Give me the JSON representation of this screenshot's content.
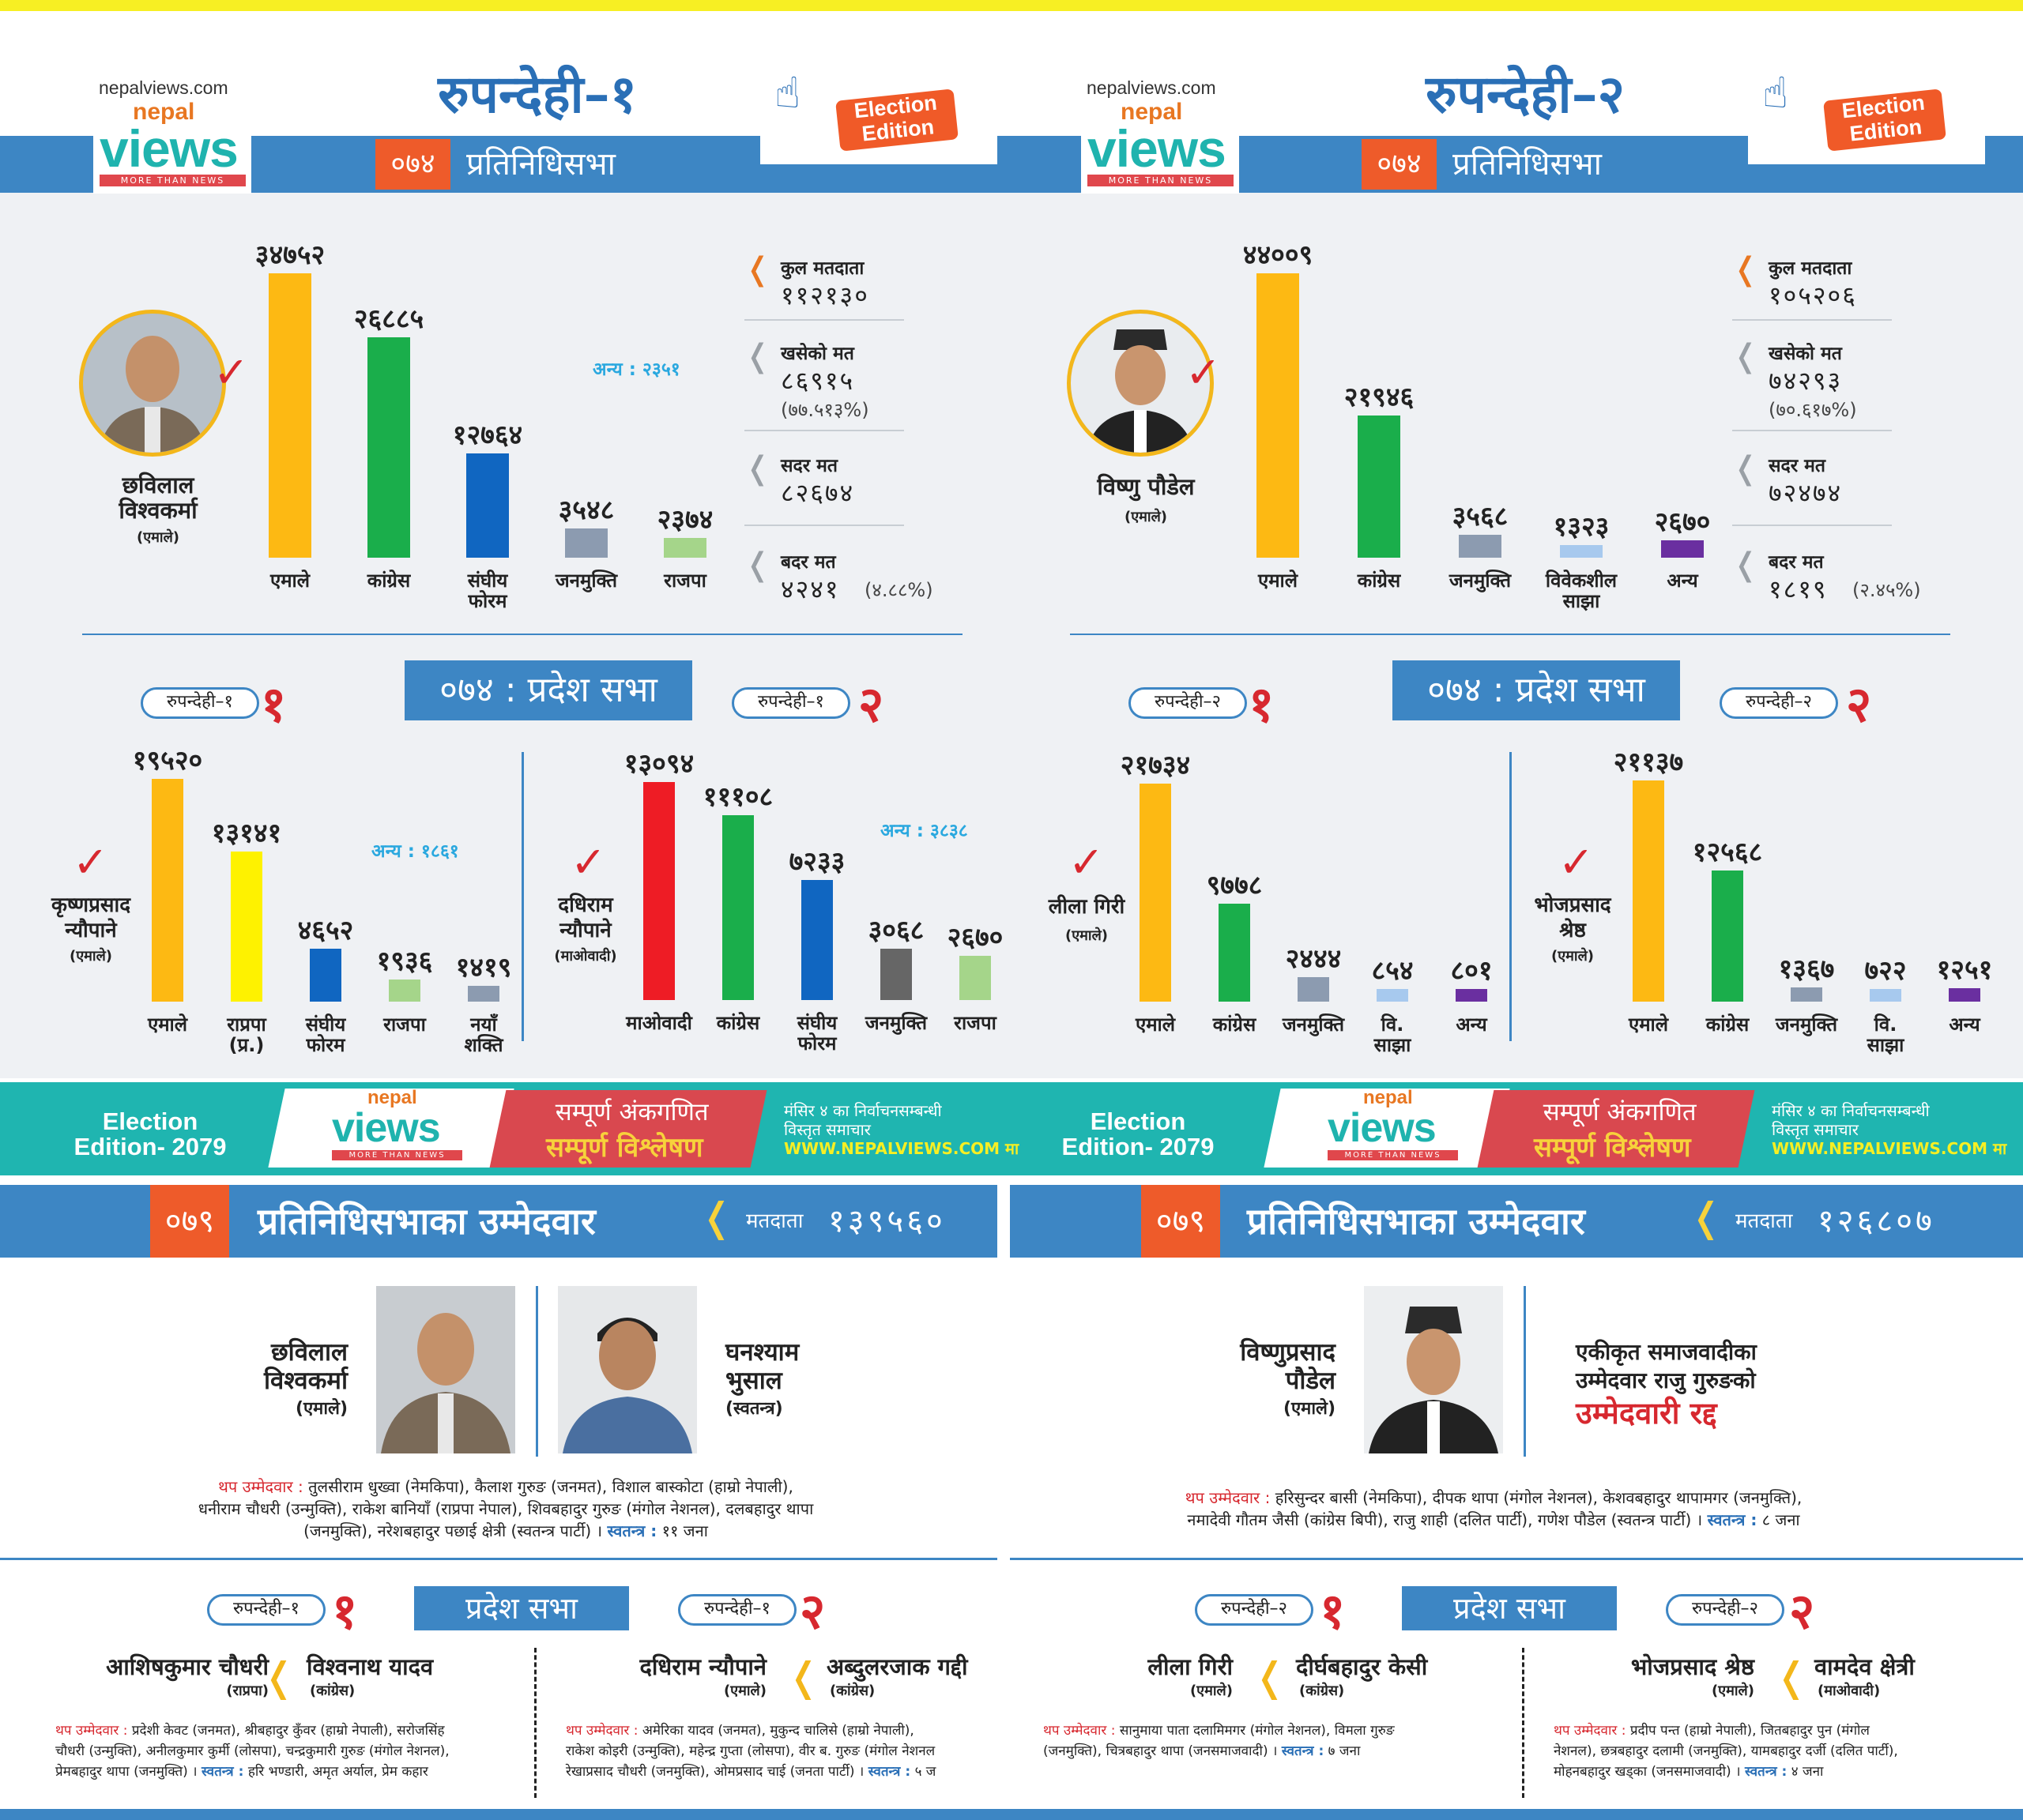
{
  "site": "nepalviews.com",
  "logo": {
    "nepal": "nepal",
    "views": "views",
    "tag": "MORE THAN NEWS"
  },
  "edition_badge": [
    "Election",
    "Edition"
  ],
  "badge_074": "०७४",
  "pratinidhisabha": "प्रतिनिधिसभा",
  "colors": {
    "emale": "#fdb913",
    "congress": "#1aae4b",
    "blue": "#1066c1",
    "grey": "#8c9bb0",
    "rajpa": "#a5d58a",
    "red": "#ee1c25",
    "yellow": "#fef200",
    "purple": "#6a2fa0",
    "lightblue": "#a7c9ee",
    "darkgrey": "#666666"
  },
  "left": {
    "title": "रुपन्देही–१",
    "winner": {
      "name1": "छविलाल",
      "name2": "विश्वकर्मा",
      "party": "(एमाले)"
    },
    "chart_data": {
      "type": "bar",
      "categories": [
        "एमाले",
        "कांग्रेस",
        "संघीय फोरम",
        "जनमुक्ति",
        "राजपा"
      ],
      "values": [
        34752,
        26885,
        12764,
        3548,
        2374
      ],
      "labels": [
        "३४७५२",
        "२६८८५",
        "१२७६४",
        "३५४८",
        "२३७४"
      ]
    },
    "cat_labels": [
      "एमाले",
      "कांग्रेस",
      "संघीय",
      "फोरम",
      "जनमुक्ति",
      "राजपा"
    ],
    "anya": "अन्य : २३५१",
    "stats": [
      {
        "label": "कुल मतदाता",
        "value": "११२१३०"
      },
      {
        "label": "खसेको मत",
        "value": "८६९१५",
        "pct": "(७७.५१३%)"
      },
      {
        "label": "सदर मत",
        "value": "८२६७४"
      },
      {
        "label": "बदर मत",
        "value": "४२४१",
        "pct": "(४.८८%)"
      }
    ],
    "pradesh_title": "०७४ : प्रदेश सभा",
    "p1": {
      "pill": "रुपन्देही–१",
      "num": "१",
      "winner1": "कृष्णप्रसाद",
      "winner2": "न्यौपाने",
      "party": "(एमाले)",
      "anya": "अन्य : १८६१",
      "chart_data": {
        "type": "bar",
        "categories": [
          "एमाले",
          "राप्रपा (प्र.)",
          "संघीय फोरम",
          "राजपा",
          "नयाँ शक्ति"
        ],
        "values": [
          19520,
          13141,
          4652,
          1936,
          1419
        ],
        "labels": [
          "१९५२०",
          "१३१४१",
          "४६५२",
          "१९३६",
          "१४१९"
        ]
      },
      "cats": [
        "एमाले",
        "राप्रपा",
        "(प्र.)",
        "संघीय",
        "फोरम",
        "राजपा",
        "नयाँ",
        "शक्ति"
      ]
    },
    "p2": {
      "pill": "रुपन्देही–१",
      "num": "२",
      "winner1": "दधिराम",
      "winner2": "न्यौपाने",
      "party": "(माओवादी)",
      "anya": "अन्य : ३८३८",
      "chart_data": {
        "type": "bar",
        "categories": [
          "माओवादी",
          "कांग्रेस",
          "संघीय फोरम",
          "जनमुक्ति",
          "राजपा"
        ],
        "values": [
          13094,
          11108,
          7233,
          3068,
          2670
        ],
        "labels": [
          "१३०९४",
          "१११०८",
          "७२३३",
          "३०६८",
          "२६७०"
        ]
      },
      "cats": [
        "माओवादी",
        "कांग्रेस",
        "संघीय",
        "फोरम",
        "जनमुक्ति",
        "राजपा"
      ]
    },
    "banner": {
      "ed1": "Election",
      "ed2": "Edition- 2079",
      "s1": "सम्पूर्ण अंकगणित",
      "s2": "सम्पूर्ण विश्लेषण",
      "m1": "मंसिर ४ का निर्वाचनसम्बन्धी",
      "m2": "विस्तृत समाचार",
      "m3": "WWW.NEPALVIEWS.COM मा"
    },
    "b079": "०७९",
    "uttitle": "प्रतिनिधिसभाका उम्मेदवार",
    "matdata_lbl": "मतदाता",
    "matdata": "१३९५६०",
    "cand_a": {
      "n1": "छविलाल",
      "n2": "विश्वकर्मा",
      "p": "(एमाले)"
    },
    "cand_b": {
      "n1": "घनश्याम",
      "n2": "भुसाल",
      "p": "(स्वतन्त्र)"
    },
    "thap_lbl": "थप उम्मेदवार :",
    "thap1": "तुलसीराम धुख्वा (नेमकिपा), कैलाश गुरुङ (जनमत), विशाल बास्कोटा (हाम्रो नेपाली),",
    "thap2": "धनीराम चौधरी (उन्मुक्ति), राकेश बानियाँ (राप्रपा नेपाल), शिवबहादुर गुरुङ (मंगोल नेशनल), दलबहादुर थापा",
    "thap3": "(जनमुक्ति), नरेशबहादुर पछाई क्षेत्री (स्वतन्त्र पार्टी) ।",
    "swatantra_lbl": "स्वतन्त्र :",
    "swatantra": "११ जना",
    "pradesh2": "प्रदेश सभा",
    "pp1": {
      "pill": "रुपन्देही–१",
      "num": "१",
      "a": "आशिषकुमार चौधरी",
      "ap": "(राप्रपा)",
      "b": "विश्वनाथ यादव",
      "bp": "(कांग्रेस)",
      "l1": "प्रदेशी केवट (जनमत), श्रीबहादुर कुँवर (हाम्रो नेपाली), सरोजसिंह",
      "l2": "चौधरी (उन्मुक्ति), अनीलकुमार कुर्मी (लोसपा), चन्द्रकुमारी गुरुङ (मंगोल नेशनल),",
      "l3": "प्रेमबहादुर थापा (जनमुक्ति) ।",
      "sw": "हरि भण्डारी, अमृत अर्याल, प्रेम कहार"
    },
    "pp2": {
      "pill": "रुपन्देही–१",
      "num": "२",
      "a": "दधिराम न्यौपाने",
      "ap": "(एमाले)",
      "b": "अब्दुलरजाक गद्दी",
      "bp": "(कांग्रेस)",
      "l1": "अमेरिका यादव (जनमत), मुकुन्द चालिसे (हाम्रो नेपाली),",
      "l2": "राकेश कोइरी (उन्मुक्ति), महेन्द्र गुप्ता (लोसपा), वीर ब. गुरुङ (मंगोल नेशनल",
      "l3": "रेखाप्रसाद चौधरी (जनमुक्ति), ओमप्रसाद चाई (जनता पार्टी) ।",
      "sw": "५ ज"
    }
  },
  "right": {
    "title": "रुपन्देही–२",
    "winner": {
      "name1": "विष्णु पौडेल",
      "party": "(एमाले)"
    },
    "chart_data": {
      "type": "bar",
      "categories": [
        "एमाले",
        "कांग्रेस",
        "जनमुक्ति",
        "विवेकशील साझा",
        "अन्य"
      ],
      "values": [
        44009,
        21946,
        3568,
        1323,
        2670
      ],
      "labels": [
        "४४००९",
        "२१९४६",
        "३५६८",
        "१३२३",
        "२६७०"
      ]
    },
    "cat_labels": [
      "एमाले",
      "कांग्रेस",
      "जनमुक्ति",
      "विवेकशील",
      "साझा",
      "अन्य"
    ],
    "stats": [
      {
        "label": "कुल मतदाता",
        "value": "१०५२०६"
      },
      {
        "label": "खसेको मत",
        "value": "७४२९३",
        "pct": "(७०.६१७%)"
      },
      {
        "label": "सदर मत",
        "value": "७२४७४"
      },
      {
        "label": "बदर मत",
        "value": "१८१९",
        "pct": "(२.४५%)"
      }
    ],
    "pradesh_title": "०७४ : प्रदेश सभा",
    "p1": {
      "pill": "रुपन्देही–२",
      "num": "१",
      "winner1": "लीला गिरी",
      "party": "(एमाले)",
      "chart_data": {
        "type": "bar",
        "categories": [
          "एमाले",
          "कांग्रेस",
          "जनमुक्ति",
          "वि. साझा",
          "अन्य"
        ],
        "values": [
          21734,
          9778,
          2444,
          854,
          801
        ],
        "labels": [
          "२१७३४",
          "९७७८",
          "२४४४",
          "८५४",
          "८०१"
        ]
      },
      "cats": [
        "एमाले",
        "कांग्रेस",
        "जनमुक्ति",
        "वि.",
        "साझा",
        "अन्य"
      ]
    },
    "p2": {
      "pill": "रुपन्देही–२",
      "num": "२",
      "winner1": "भोजप्रसाद",
      "winner2": "श्रेष्ठ",
      "party": "(एमाले)",
      "chart_data": {
        "type": "bar",
        "categories": [
          "एमाले",
          "कांग्रेस",
          "जनमुक्ति",
          "वि. साझा",
          "अन्य"
        ],
        "values": [
          21137,
          12568,
          1367,
          722,
          1251
        ],
        "labels": [
          "२११३७",
          "१२५६८",
          "१३६७",
          "७२२",
          "१२५१"
        ]
      },
      "cats": [
        "एमाले",
        "कांग्रेस",
        "जनमुक्ति",
        "वि.",
        "साझा",
        "अन्य"
      ]
    },
    "banner": {
      "ed1": "Election",
      "ed2": "Edition- 2079",
      "s1": "सम्पूर्ण अंकगणित",
      "s2": "सम्पूर्ण विश्लेषण",
      "m1": "मंसिर ४ का निर्वाचनसम्बन्धी",
      "m2": "विस्तृत समाचार",
      "m3": "WWW.NEPALVIEWS.COM मा"
    },
    "b079": "०७९",
    "uttitle": "प्रतिनिधिसभाका उम्मेदवार",
    "matdata_lbl": "मतदाता",
    "matdata": "१२६८०७",
    "cand_a": {
      "n1": "विष्णुप्रसाद",
      "n2": "पौडेल",
      "p": "(एमाले)"
    },
    "cancel": {
      "l1": "एकीकृत समाजवादीका",
      "l2": "उम्मेदवार राजु गुरुङको",
      "l3": "उम्मेदवारी रद्द"
    },
    "thap_lbl": "थप उम्मेदवार :",
    "thap1": "हरिसुन्दर बासी (नेमकिपा), दीपक थापा (मंगोल नेशनल), केशवबहादुर थापामगर (जनमुक्ति),",
    "thap2": "नमादेवी गौतम जैसी (कांग्रेस बिपी), राजु शाही (दलित पार्टी), गणेश पौडेल (स्वतन्त्र पार्टी) ।",
    "swatantra_lbl": "स्वतन्त्र :",
    "swatantra": "८ जना",
    "pradesh2": "प्रदेश सभा",
    "pp1": {
      "pill": "रुपन्देही–२",
      "num": "१",
      "a": "लीला गिरी",
      "ap": "(एमाले)",
      "b": "दीर्घबहादुर केसी",
      "bp": "(कांग्रेस)",
      "l1": "सानुमाया पाता दलामिमगर (मंगोल नेशनल), विमला गुरुङ",
      "l2": "(जनमुक्ति), चित्रबहादुर थापा (जनसमाजवादी) ।",
      "sw": "७ जना"
    },
    "pp2": {
      "pill": "रुपन्देही–२",
      "num": "२",
      "a": "भोजप्रसाद श्रेष्ठ",
      "ap": "(एमाले)",
      "b": "वामदेव क्षेत्री",
      "bp": "(माओवादी)",
      "l1": "प्रदीप पन्त (हाम्रो नेपाली), जितबहादुर पुन (मंगोल",
      "l2": "नेशनल), छत्रबहादुर दलामी (जनमुक्ति), यामबहादुर दर्जी (दलित पार्टी),",
      "l3": "मोहनबहादुर खड्का (जनसमाजवादी) ।",
      "sw": "४ जना"
    }
  }
}
